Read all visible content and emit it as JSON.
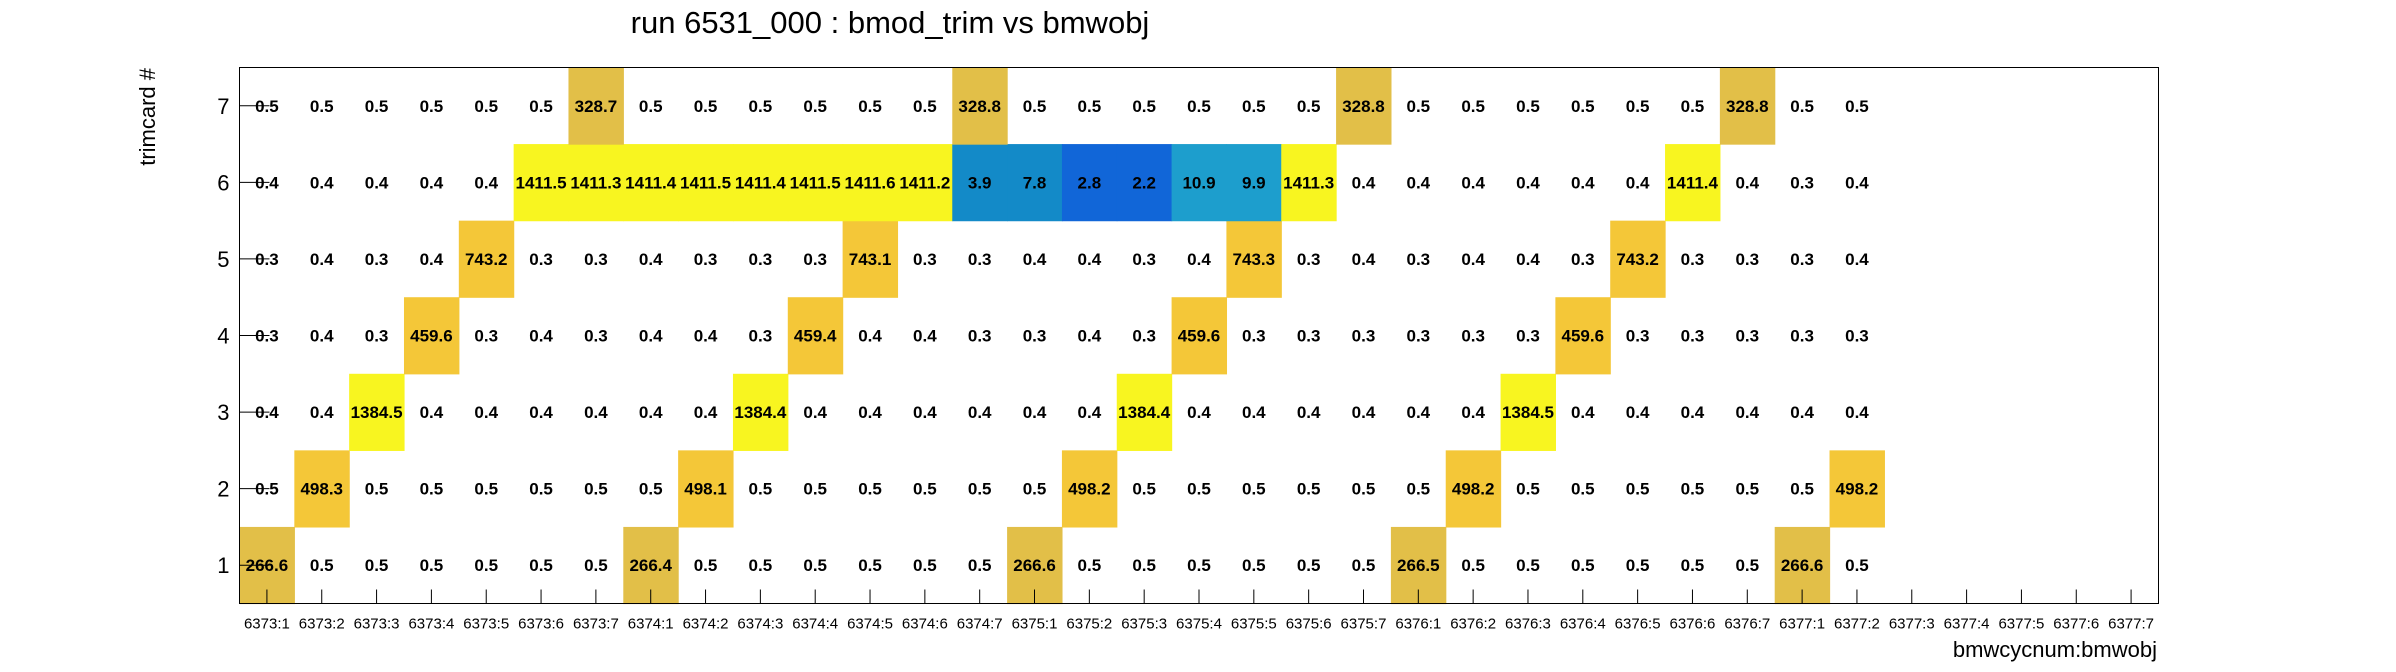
{
  "chart_data": {
    "type": "heatmap",
    "title": "run 6531_000 : bmod_trim vs bmwobj",
    "xlabel": "bmwcycnum:bmwobj",
    "ylabel": "trimcard #",
    "categories": [
      "6373:1",
      "6373:2",
      "6373:3",
      "6373:4",
      "6373:5",
      "6373:6",
      "6373:7",
      "6374:1",
      "6374:2",
      "6374:3",
      "6374:4",
      "6374:5",
      "6374:6",
      "6374:7",
      "6375:1",
      "6375:2",
      "6375:3",
      "6375:4",
      "6375:5",
      "6375:6",
      "6375:7",
      "6376:1",
      "6376:2",
      "6376:3",
      "6376:4",
      "6376:5",
      "6376:6",
      "6376:7",
      "6377:1",
      "6377:2",
      "6377:3",
      "6377:4",
      "6377:5",
      "6377:6",
      "6377:7"
    ],
    "y_categories": [
      "1",
      "2",
      "3",
      "4",
      "5",
      "6",
      "7"
    ],
    "series": [
      {
        "y": "1",
        "values": [
          266.6,
          0.5,
          0.5,
          0.5,
          0.5,
          0.5,
          0.5,
          266.4,
          0.5,
          0.5,
          0.5,
          0.5,
          0.5,
          0.5,
          266.6,
          0.5,
          0.5,
          0.5,
          0.5,
          0.5,
          0.5,
          266.5,
          0.5,
          0.5,
          0.5,
          0.5,
          0.5,
          0.5,
          266.6,
          0.5,
          null,
          null,
          null,
          null,
          null
        ]
      },
      {
        "y": "2",
        "values": [
          0.5,
          498.3,
          0.5,
          0.5,
          0.5,
          0.5,
          0.5,
          0.5,
          498.1,
          0.5,
          0.5,
          0.5,
          0.5,
          0.5,
          0.5,
          498.2,
          0.5,
          0.5,
          0.5,
          0.5,
          0.5,
          0.5,
          498.2,
          0.5,
          0.5,
          0.5,
          0.5,
          0.5,
          0.5,
          498.2,
          null,
          null,
          null,
          null,
          null
        ]
      },
      {
        "y": "3",
        "values": [
          0.4,
          0.4,
          1384.5,
          0.4,
          0.4,
          0.4,
          0.4,
          0.4,
          0.4,
          1384.4,
          0.4,
          0.4,
          0.4,
          0.4,
          0.4,
          0.4,
          1384.4,
          0.4,
          0.4,
          0.4,
          0.4,
          0.4,
          0.4,
          1384.5,
          0.4,
          0.4,
          0.4,
          0.4,
          0.4,
          0.4,
          null,
          null,
          null,
          null,
          null
        ]
      },
      {
        "y": "4",
        "values": [
          0.3,
          0.4,
          0.3,
          459.6,
          0.3,
          0.4,
          0.3,
          0.4,
          0.4,
          0.3,
          459.4,
          0.4,
          0.4,
          0.3,
          0.3,
          0.4,
          0.3,
          459.6,
          0.3,
          0.3,
          0.3,
          0.3,
          0.3,
          0.3,
          459.6,
          0.3,
          0.3,
          0.3,
          0.3,
          0.3,
          null,
          null,
          null,
          null,
          null
        ]
      },
      {
        "y": "5",
        "values": [
          0.3,
          0.4,
          0.3,
          0.4,
          743.2,
          0.3,
          0.3,
          0.4,
          0.3,
          0.3,
          0.3,
          743.1,
          0.3,
          0.3,
          0.4,
          0.4,
          0.3,
          0.4,
          743.3,
          0.3,
          0.4,
          0.3,
          0.4,
          0.4,
          0.3,
          743.2,
          0.3,
          0.3,
          0.3,
          0.4,
          null,
          null,
          null,
          null,
          null
        ]
      },
      {
        "y": "6",
        "values": [
          0.4,
          0.4,
          0.4,
          0.4,
          0.4,
          1411.5,
          1411.3,
          1411.4,
          1411.5,
          1411.4,
          1411.5,
          1411.6,
          1411.2,
          3.9,
          7.8,
          2.8,
          2.2,
          10.9,
          9.9,
          1411.3,
          0.4,
          0.4,
          0.4,
          0.4,
          0.4,
          0.4,
          1411.4,
          0.4,
          0.3,
          0.4,
          null,
          null,
          null,
          null,
          null
        ]
      },
      {
        "y": "7",
        "values": [
          0.5,
          0.5,
          0.5,
          0.5,
          0.5,
          0.5,
          328.7,
          0.5,
          0.5,
          0.5,
          0.5,
          0.5,
          0.5,
          328.8,
          0.5,
          0.5,
          0.5,
          0.5,
          0.5,
          0.5,
          328.8,
          0.5,
          0.5,
          0.5,
          0.5,
          0.5,
          0.5,
          328.8,
          0.5,
          0.5,
          null,
          null,
          null,
          null,
          null
        ]
      }
    ],
    "value_format": "one decimal",
    "grid": false,
    "legend": "none",
    "colors": {
      "v200_400": "#e2bf48",
      "v400_800": "#f4c738",
      "v800_plus": "#f8f520",
      "v0_3": "#1166d8",
      "v3_9": "#138ac8",
      "v9_12": "#1d9ecd"
    }
  }
}
